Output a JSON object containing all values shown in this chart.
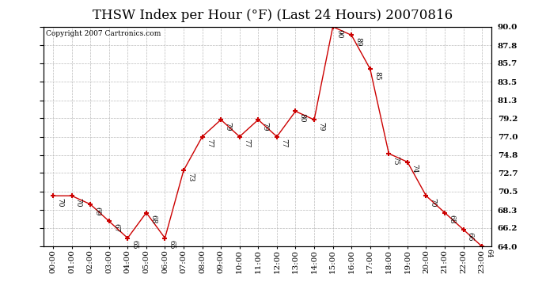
{
  "title": "THSW Index per Hour (°F) (Last 24 Hours) 20070816",
  "copyright_text": "Copyright 2007 Cartronics.com",
  "hours": [
    "00:00",
    "01:00",
    "02:00",
    "03:00",
    "04:00",
    "05:00",
    "06:00",
    "07:00",
    "08:00",
    "09:00",
    "10:00",
    "11:00",
    "12:00",
    "13:00",
    "14:00",
    "15:00",
    "16:00",
    "17:00",
    "18:00",
    "19:00",
    "20:00",
    "21:00",
    "22:00",
    "23:00"
  ],
  "values": [
    70,
    70,
    69,
    67,
    65,
    68,
    65,
    73,
    77,
    79,
    77,
    79,
    77,
    80,
    79,
    90,
    89,
    85,
    75,
    74,
    70,
    68,
    66,
    64
  ],
  "line_color": "#cc0000",
  "marker_color": "#cc0000",
  "grid_color": "#bbbbbb",
  "background_color": "#ffffff",
  "plot_bg_color": "#ffffff",
  "ylim_min": 64.0,
  "ylim_max": 90.0,
  "yticks": [
    64.0,
    66.2,
    68.3,
    70.5,
    72.7,
    74.8,
    77.0,
    79.2,
    81.3,
    83.5,
    85.7,
    87.8,
    90.0
  ],
  "title_fontsize": 12,
  "copyright_fontsize": 6.5,
  "label_fontsize": 6.5,
  "tick_fontsize": 7.5
}
